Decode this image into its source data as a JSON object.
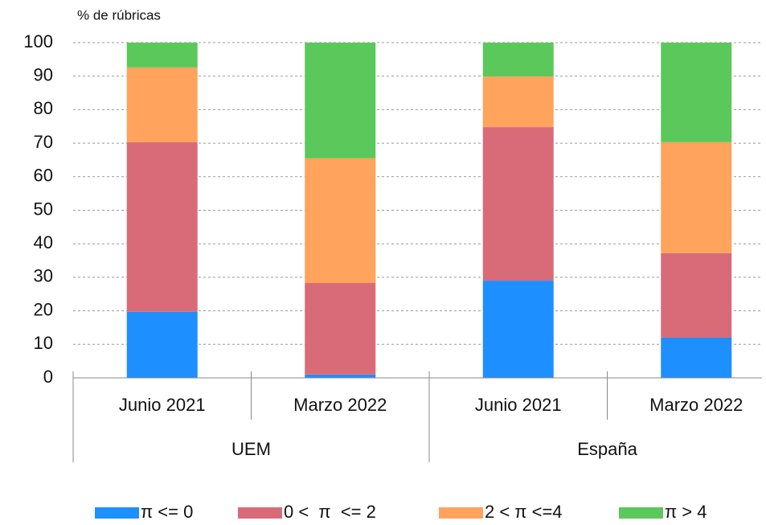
{
  "chart_data": {
    "type": "bar",
    "stacked": true,
    "y_axis_label": "% de rúbricas",
    "categories": [
      "Junio 2021",
      "Marzo 2022",
      "Junio 2021",
      "Marzo 2022"
    ],
    "groups": [
      "UEM",
      "España"
    ],
    "series": [
      {
        "name": "π <= 0",
        "color": "#1e8fff",
        "values": [
          19.7,
          1.0,
          29.0,
          12.0
        ]
      },
      {
        "name": "0 <  π  <= 2",
        "color": "#d96b78",
        "values": [
          50.6,
          27.3,
          45.8,
          25.2
        ]
      },
      {
        "name": "2 < π <=4",
        "color": "#ffa35d",
        "values": [
          22.3,
          37.2,
          15.1,
          33.1
        ]
      },
      {
        "name": "π > 4",
        "color": "#5bc85b",
        "values": [
          7.4,
          34.5,
          10.1,
          29.7
        ]
      }
    ],
    "ylim": [
      0,
      100
    ],
    "yticks": [
      0,
      10,
      20,
      30,
      40,
      50,
      60,
      70,
      80,
      90,
      100
    ],
    "grid": true,
    "legend": "bottom"
  }
}
